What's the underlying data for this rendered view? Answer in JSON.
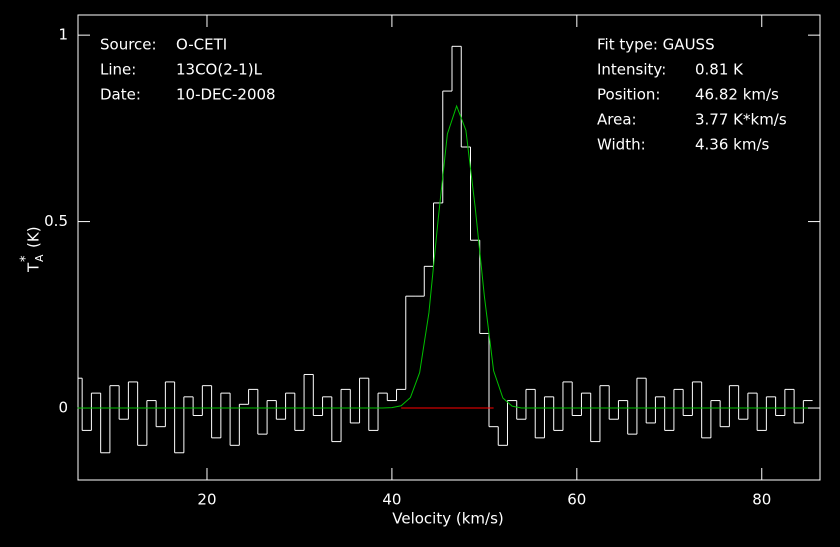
{
  "chart_data": {
    "type": "step",
    "xlabel": "Velocity (km/s)",
    "ylabel": {
      "main": "T",
      "sub": "A",
      "sup": "*",
      "unit": "(K)"
    },
    "xlim": [
      6.05,
      86.3
    ],
    "ylim": [
      -0.193,
      1.054
    ],
    "xticks": [
      20,
      40,
      60,
      80
    ],
    "yticks": [
      0,
      0.5,
      1
    ],
    "x": [
      6,
      7,
      8,
      9,
      10,
      11,
      12,
      13,
      14,
      15,
      16,
      17,
      18,
      19,
      20,
      21,
      22,
      23,
      24,
      25,
      26,
      27,
      28,
      29,
      30,
      31,
      32,
      33,
      34,
      35,
      36,
      37,
      38,
      39,
      40,
      41,
      42,
      43,
      44,
      45,
      46,
      47,
      48,
      49,
      50,
      51,
      52,
      53,
      54,
      55,
      56,
      57,
      58,
      59,
      60,
      61,
      62,
      63,
      64,
      65,
      66,
      67,
      68,
      69,
      70,
      71,
      72,
      73,
      74,
      75,
      76,
      77,
      78,
      79,
      80,
      81,
      82,
      83,
      84,
      85
    ],
    "series": [
      {
        "name": "spectrum",
        "color": "#ffffff",
        "values": [
          0.08,
          -0.06,
          0.04,
          -0.12,
          0.06,
          -0.03,
          0.07,
          -0.1,
          0.02,
          -0.05,
          0.07,
          -0.12,
          0.03,
          -0.02,
          0.06,
          -0.08,
          0.04,
          -0.1,
          0.01,
          0.05,
          -0.07,
          0.02,
          -0.03,
          0.04,
          -0.06,
          0.09,
          -0.02,
          0.03,
          -0.09,
          0.05,
          -0.04,
          0.08,
          -0.06,
          0.04,
          0.02,
          0.05,
          0.3,
          0.3,
          0.38,
          0.55,
          0.85,
          0.97,
          0.7,
          0.45,
          0.2,
          -0.05,
          -0.1,
          0.02,
          -0.03,
          0.05,
          -0.08,
          0.03,
          -0.06,
          0.07,
          -0.02,
          0.04,
          -0.09,
          0.06,
          -0.03,
          0.02,
          -0.07,
          0.08,
          -0.04,
          0.03,
          -0.06,
          0.05,
          -0.02,
          0.07,
          -0.08,
          0.02,
          -0.05,
          0.06,
          -0.03,
          0.04,
          -0.06,
          0.03,
          -0.02,
          0.05,
          -0.04,
          0.02
        ]
      },
      {
        "name": "fit",
        "color": "#00c000",
        "values": [
          0,
          0,
          0,
          0,
          0,
          0,
          0,
          0,
          0,
          0,
          0,
          0,
          0,
          0,
          0,
          0,
          0,
          0,
          0,
          0,
          0,
          0,
          0,
          0,
          0,
          0,
          0,
          0,
          0,
          0,
          0,
          0,
          0,
          0,
          0.001,
          0.006,
          0.028,
          0.095,
          0.255,
          0.505,
          0.735,
          0.81,
          0.745,
          0.54,
          0.3,
          0.1,
          0.027,
          0.005,
          0,
          0,
          0,
          0,
          0,
          0,
          0,
          0,
          0,
          0,
          0,
          0,
          0,
          0,
          0,
          0,
          0,
          0,
          0,
          0,
          0,
          0,
          0,
          0,
          0,
          0,
          0,
          0,
          0,
          0,
          0,
          0
        ]
      }
    ],
    "fit_window": {
      "xlim": [
        41,
        51
      ],
      "color": "#ff0000"
    },
    "info_left": [
      [
        "Source:",
        "O-CETI"
      ],
      [
        "Line:",
        "13CO(2-1)L"
      ],
      [
        "Date:",
        "10-DEC-2008"
      ]
    ],
    "fit_type": "Fit type: GAUSS",
    "info_right": [
      [
        "Intensity:",
        "0.81 K"
      ],
      [
        "Position:",
        "46.82 km/s"
      ],
      [
        "Area:",
        "3.77 K*km/s"
      ],
      [
        "Width:",
        "4.36 km/s"
      ]
    ]
  }
}
